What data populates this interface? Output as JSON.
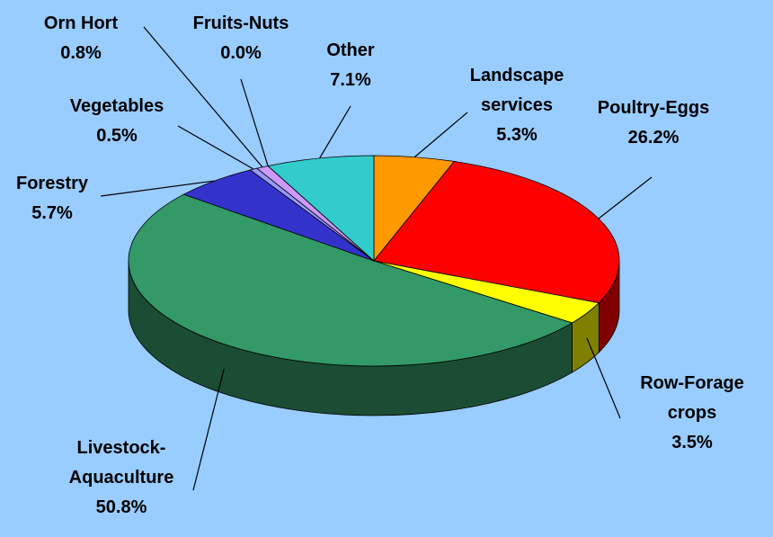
{
  "chart_data": {
    "type": "pie",
    "categories": [
      "Landscape services",
      "Poultry-Eggs",
      "Row-Forage crops",
      "Livestock-Aquaculture",
      "Forestry",
      "Vegetables",
      "Orn Hort",
      "Fruits-Nuts",
      "Other"
    ],
    "values": [
      5.3,
      26.2,
      3.5,
      50.8,
      5.7,
      0.5,
      0.8,
      0.0,
      7.1
    ],
    "value_labels": [
      "5.3%",
      "26.2%",
      "3.5%",
      "50.8%",
      "5.7%",
      "0.5%",
      "0.8%",
      "0.0%",
      "7.1%"
    ],
    "colors": [
      "#ff9900",
      "#ff0000",
      "#ffff00",
      "#339966",
      "#3333cc",
      "#9999ff",
      "#cc99ff",
      "#ff99cc",
      "#33cccc"
    ]
  }
}
